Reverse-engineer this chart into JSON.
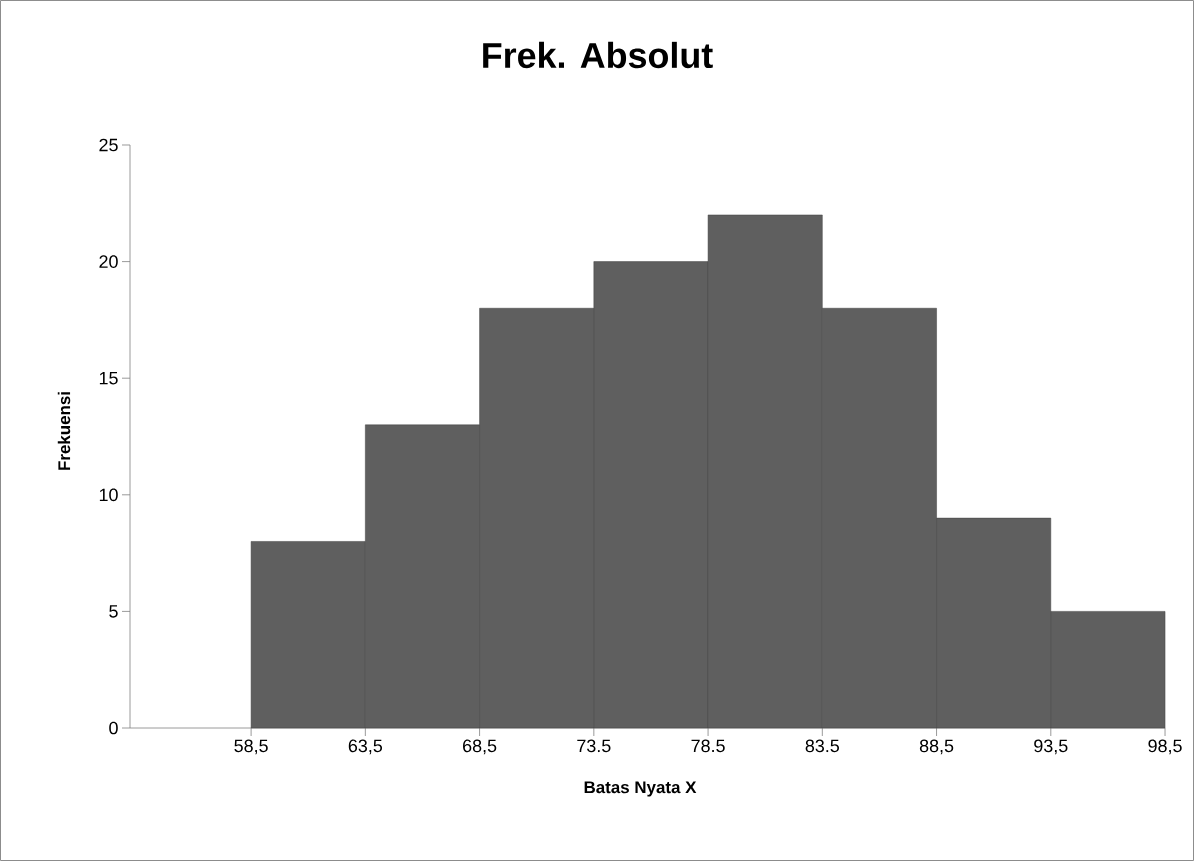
{
  "chart_data": {
    "type": "histogram",
    "title": "Frek. Absolut",
    "xlabel": "Batas Nyata X",
    "ylabel": "Frekuensi",
    "bins": [
      58.5,
      63.5,
      68.5,
      73.5,
      78.5,
      83.5,
      88.5,
      93.5,
      98.5
    ],
    "values": [
      8,
      13,
      18,
      20,
      22,
      18,
      9,
      5
    ],
    "color": "#5f5f5f",
    "xlim": [
      53.2,
      98.5
    ],
    "ylim": [
      0,
      25
    ],
    "xticks": [
      {
        "value": 58.5,
        "label": "58,5"
      },
      {
        "value": 63.5,
        "label": "63,5"
      },
      {
        "value": 68.5,
        "label": "68,5"
      },
      {
        "value": 73.5,
        "label": "73.5"
      },
      {
        "value": 78.5,
        "label": "78.5"
      },
      {
        "value": 83.5,
        "label": "83.5"
      },
      {
        "value": 88.5,
        "label": "88,5"
      },
      {
        "value": 93.5,
        "label": "93,5"
      },
      {
        "value": 98.5,
        "label": "98,5"
      }
    ],
    "yticks": [
      0,
      5,
      10,
      15,
      20,
      25
    ]
  }
}
